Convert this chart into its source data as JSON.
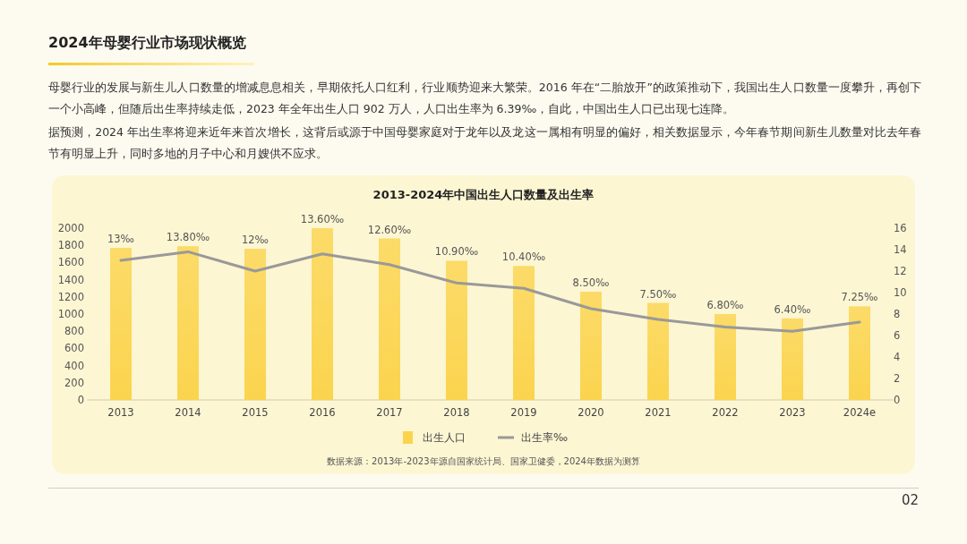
{
  "chart_data": {
    "type": "bar",
    "title": "2024年母婴行业市场现状概览",
    "subtitle": "2013-2024年中国出生人口数量及出生率",
    "annotations": [
      "母婴行业的发展与新生儿人口数量的增减息息相关，早期依托人口红利，行业顺势迎来大繁荣。2016 年在“二胎放开”的政策推动下，我国出生人口数量一度攀升，再创下一个小高峰，但随后出生率持续走低，2023 年全年出生人口 902 万人，人口出生率为 6.39‰，自此，中国出生人口已出现七连降。",
      "据预测，2024 年出生率将迎来近年来首次增长，这背后或源于中国母婴家庭对于龙年以及龙这一属相有明显的偏好，相关数据显示，今年春节期间新生儿数量对比去年春节有明显上升，同时多地的月子中心和月嫂供不应求。",
      "数据来源：2013年-2023年源自国家统计局、国家卫健委，2024年数据为测算",
      "02"
    ],
    "categories": [
      "2013",
      "2014",
      "2015",
      "2016",
      "2017",
      "2018",
      "2019",
      "2020",
      "2021",
      "2022",
      "2023",
      "2024e"
    ],
    "series": [
      {
        "name": "出生人口",
        "color": "#fbd44e",
        "values": [
          1770,
          1790,
          1760,
          2000,
          1880,
          1620,
          1560,
          1260,
          1130,
          1000,
          950,
          1090
        ]
      },
      {
        "name": "出生率‰",
        "type": "line",
        "axis": "y2",
        "color": "#999999",
        "values": [
          13,
          13.8,
          12,
          13.6,
          12.6,
          10.9,
          10.4,
          8.5,
          7.5,
          6.8,
          6.4,
          7.25
        ],
        "value_labels": [
          "13‰",
          "13.80‰",
          "12‰",
          "13.60‰",
          "12.60‰",
          "10.90‰",
          "10.40‰",
          "8.50‰",
          "7.50‰",
          "6.80‰",
          "6.40‰",
          "7.25‰"
        ]
      }
    ],
    "ylim": [
      0,
      2000
    ],
    "yticks": [
      0,
      200,
      400,
      600,
      800,
      1000,
      1200,
      1400,
      1600,
      1800,
      2000
    ],
    "y2lim": [
      0,
      16
    ],
    "y2ticks": [
      0,
      2,
      4,
      6,
      8,
      10,
      12,
      14,
      16
    ],
    "legend": "bottom"
  }
}
